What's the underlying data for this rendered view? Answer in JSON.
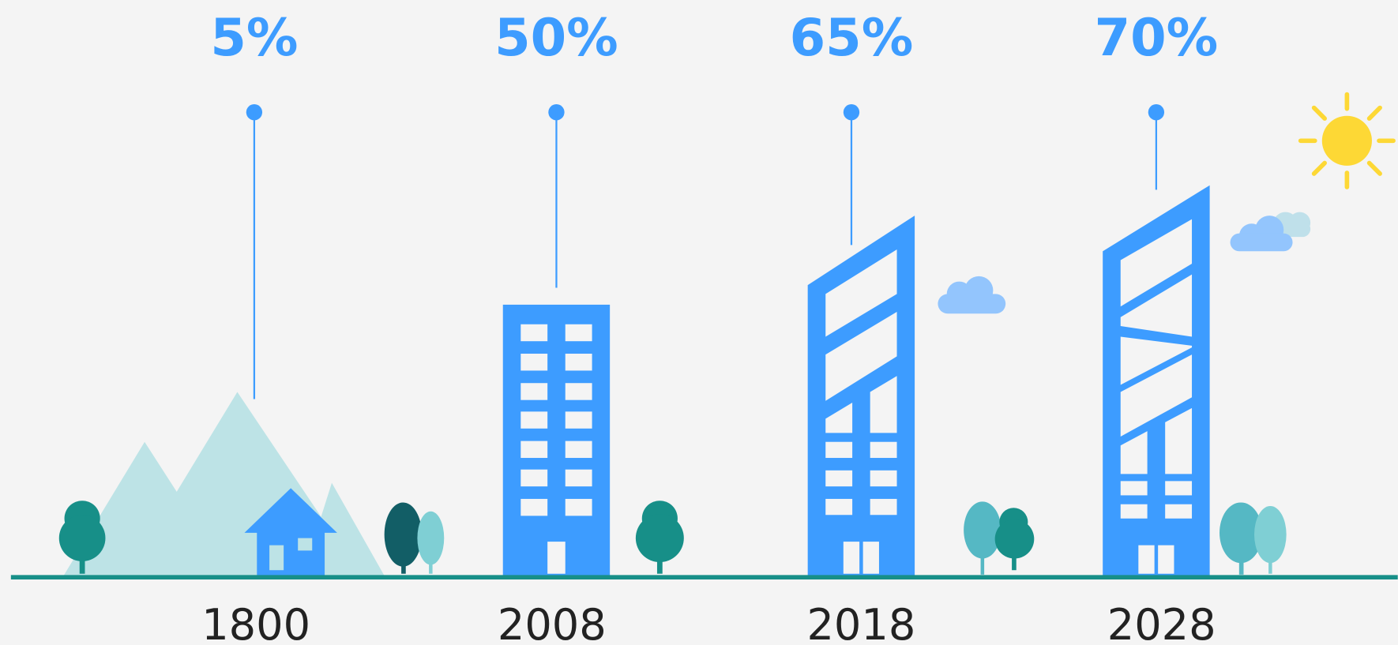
{
  "items": [
    {
      "label": "5%",
      "year": "1800"
    },
    {
      "label": "50%",
      "year": "2008"
    },
    {
      "label": "65%",
      "year": "2018"
    },
    {
      "label": "70%",
      "year": "2028"
    }
  ]
}
